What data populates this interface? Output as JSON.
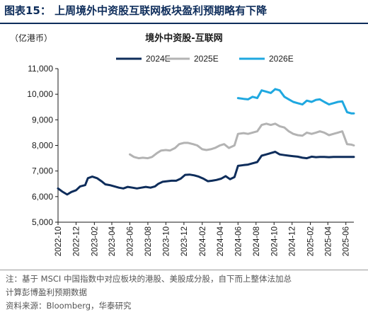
{
  "header": {
    "title": "图表15：  上周境外中资股互联网板块盈利预期略有下降"
  },
  "footer": {
    "note_line1": "注：基于 MSCI 中国指数中对应板块的港股、美股成分股，自下而上整体法加总",
    "note_line2": "计算彭博盈利预期数据",
    "source": "资料来源：Bloomberg，华泰研究"
  },
  "chart_data": {
    "type": "line",
    "title": "境外中资股-互联网",
    "unit_label": "（亿港币）",
    "ylim": [
      5000,
      11000
    ],
    "yticks": [
      5000,
      6000,
      7000,
      8000,
      9000,
      10000,
      11000
    ],
    "ytick_labels": [
      "5,000",
      "6,000",
      "7,000",
      "8,000",
      "9,000",
      "10,000",
      "11,000"
    ],
    "x_range": [
      "2022-10",
      "2025-06"
    ],
    "xtick_labels": [
      "2022-10",
      "2022-12",
      "2023-02",
      "2023-04",
      "2023-06",
      "2023-08",
      "2023-10",
      "2023-12",
      "2024-02",
      "2024-04",
      "2024-06",
      "2024-08",
      "2024-10",
      "2024-12",
      "2025-02",
      "2025-04",
      "2025-06"
    ],
    "grid": false,
    "legend_position": "top",
    "series": [
      {
        "name": "2024E",
        "color": "#0e2d5b",
        "points": [
          [
            "2022-10-01",
            6320
          ],
          [
            "2022-10-15",
            6200
          ],
          [
            "2022-11-01",
            6080
          ],
          [
            "2022-11-15",
            6180
          ],
          [
            "2022-12-01",
            6250
          ],
          [
            "2022-12-15",
            6400
          ],
          [
            "2023-01-01",
            6450
          ],
          [
            "2023-01-10",
            6720
          ],
          [
            "2023-01-25",
            6780
          ],
          [
            "2023-02-10",
            6720
          ],
          [
            "2023-02-25",
            6600
          ],
          [
            "2023-03-10",
            6480
          ],
          [
            "2023-03-25",
            6450
          ],
          [
            "2023-04-10",
            6400
          ],
          [
            "2023-04-25",
            6350
          ],
          [
            "2023-05-10",
            6320
          ],
          [
            "2023-05-25",
            6380
          ],
          [
            "2023-06-10",
            6350
          ],
          [
            "2023-06-25",
            6320
          ],
          [
            "2023-07-10",
            6350
          ],
          [
            "2023-07-25",
            6380
          ],
          [
            "2023-08-10",
            6350
          ],
          [
            "2023-08-25",
            6400
          ],
          [
            "2023-09-05",
            6500
          ],
          [
            "2023-09-20",
            6580
          ],
          [
            "2023-10-05",
            6600
          ],
          [
            "2023-10-20",
            6620
          ],
          [
            "2023-11-05",
            6620
          ],
          [
            "2023-11-20",
            6700
          ],
          [
            "2023-12-05",
            6850
          ],
          [
            "2023-12-20",
            6860
          ],
          [
            "2024-01-05",
            6830
          ],
          [
            "2024-01-20",
            6780
          ],
          [
            "2024-02-05",
            6700
          ],
          [
            "2024-02-20",
            6600
          ],
          [
            "2024-03-05",
            6620
          ],
          [
            "2024-03-20",
            6650
          ],
          [
            "2024-04-05",
            6700
          ],
          [
            "2024-04-20",
            6800
          ],
          [
            "2024-05-05",
            6680
          ],
          [
            "2024-05-20",
            6760
          ],
          [
            "2024-06-01",
            7200
          ],
          [
            "2024-06-20",
            7230
          ],
          [
            "2024-07-05",
            7250
          ],
          [
            "2024-07-20",
            7300
          ],
          [
            "2024-08-05",
            7350
          ],
          [
            "2024-08-20",
            7600
          ],
          [
            "2024-09-05",
            7650
          ],
          [
            "2024-09-20",
            7700
          ],
          [
            "2024-10-05",
            7750
          ],
          [
            "2024-10-20",
            7650
          ],
          [
            "2024-11-05",
            7620
          ],
          [
            "2024-11-20",
            7600
          ],
          [
            "2024-12-05",
            7580
          ],
          [
            "2024-12-20",
            7560
          ],
          [
            "2025-01-05",
            7520
          ],
          [
            "2025-01-20",
            7500
          ],
          [
            "2025-02-05",
            7560
          ],
          [
            "2025-02-20",
            7540
          ],
          [
            "2025-03-05",
            7550
          ],
          [
            "2025-03-20",
            7550
          ],
          [
            "2025-04-05",
            7540
          ],
          [
            "2025-04-20",
            7550
          ],
          [
            "2025-05-05",
            7550
          ],
          [
            "2025-05-20",
            7550
          ],
          [
            "2025-06-05",
            7550
          ],
          [
            "2025-06-20",
            7550
          ],
          [
            "2025-06-28",
            7550
          ]
        ]
      },
      {
        "name": "2025E",
        "color": "#b3b3b3",
        "points": [
          [
            "2023-06-01",
            7650
          ],
          [
            "2023-06-15",
            7550
          ],
          [
            "2023-07-01",
            7500
          ],
          [
            "2023-07-15",
            7520
          ],
          [
            "2023-08-01",
            7500
          ],
          [
            "2023-08-15",
            7550
          ],
          [
            "2023-09-01",
            7700
          ],
          [
            "2023-09-15",
            7800
          ],
          [
            "2023-10-01",
            7820
          ],
          [
            "2023-10-15",
            7800
          ],
          [
            "2023-11-01",
            7900
          ],
          [
            "2023-11-15",
            8050
          ],
          [
            "2023-12-01",
            8100
          ],
          [
            "2023-12-15",
            8100
          ],
          [
            "2024-01-01",
            8050
          ],
          [
            "2024-01-15",
            8000
          ],
          [
            "2024-02-01",
            7850
          ],
          [
            "2024-02-15",
            7820
          ],
          [
            "2024-03-01",
            7850
          ],
          [
            "2024-03-15",
            7900
          ],
          [
            "2024-04-01",
            8000
          ],
          [
            "2024-04-15",
            8050
          ],
          [
            "2024-05-01",
            7900
          ],
          [
            "2024-05-20",
            8000
          ],
          [
            "2024-06-01",
            8450
          ],
          [
            "2024-06-20",
            8480
          ],
          [
            "2024-07-05",
            8450
          ],
          [
            "2024-07-20",
            8500
          ],
          [
            "2024-08-05",
            8550
          ],
          [
            "2024-08-20",
            8800
          ],
          [
            "2024-09-05",
            8850
          ],
          [
            "2024-09-20",
            8800
          ],
          [
            "2024-10-05",
            8850
          ],
          [
            "2024-10-20",
            8750
          ],
          [
            "2024-11-05",
            8700
          ],
          [
            "2024-11-20",
            8550
          ],
          [
            "2024-12-05",
            8450
          ],
          [
            "2024-12-20",
            8400
          ],
          [
            "2025-01-05",
            8380
          ],
          [
            "2025-01-20",
            8500
          ],
          [
            "2025-02-05",
            8450
          ],
          [
            "2025-02-20",
            8500
          ],
          [
            "2025-03-05",
            8550
          ],
          [
            "2025-03-20",
            8500
          ],
          [
            "2025-04-05",
            8400
          ],
          [
            "2025-04-20",
            8450
          ],
          [
            "2025-05-05",
            8500
          ],
          [
            "2025-05-20",
            8550
          ],
          [
            "2025-06-05",
            8050
          ],
          [
            "2025-06-20",
            8030
          ],
          [
            "2025-06-28",
            8000
          ]
        ]
      },
      {
        "name": "2026E",
        "color": "#1fa8e0",
        "points": [
          [
            "2024-06-01",
            9850
          ],
          [
            "2024-06-20",
            9820
          ],
          [
            "2024-07-05",
            9800
          ],
          [
            "2024-07-20",
            9900
          ],
          [
            "2024-08-05",
            9850
          ],
          [
            "2024-08-20",
            10150
          ],
          [
            "2024-09-05",
            10100
          ],
          [
            "2024-09-20",
            10050
          ],
          [
            "2024-10-05",
            10200
          ],
          [
            "2024-10-20",
            10150
          ],
          [
            "2024-11-05",
            9900
          ],
          [
            "2024-11-20",
            9800
          ],
          [
            "2024-12-05",
            9700
          ],
          [
            "2024-12-20",
            9650
          ],
          [
            "2025-01-05",
            9600
          ],
          [
            "2025-01-20",
            9750
          ],
          [
            "2025-02-05",
            9700
          ],
          [
            "2025-02-20",
            9780
          ],
          [
            "2025-03-05",
            9800
          ],
          [
            "2025-03-20",
            9700
          ],
          [
            "2025-04-05",
            9600
          ],
          [
            "2025-04-20",
            9650
          ],
          [
            "2025-05-05",
            9700
          ],
          [
            "2025-05-20",
            9720
          ],
          [
            "2025-06-05",
            9300
          ],
          [
            "2025-06-20",
            9250
          ],
          [
            "2025-06-28",
            9250
          ]
        ]
      }
    ]
  }
}
